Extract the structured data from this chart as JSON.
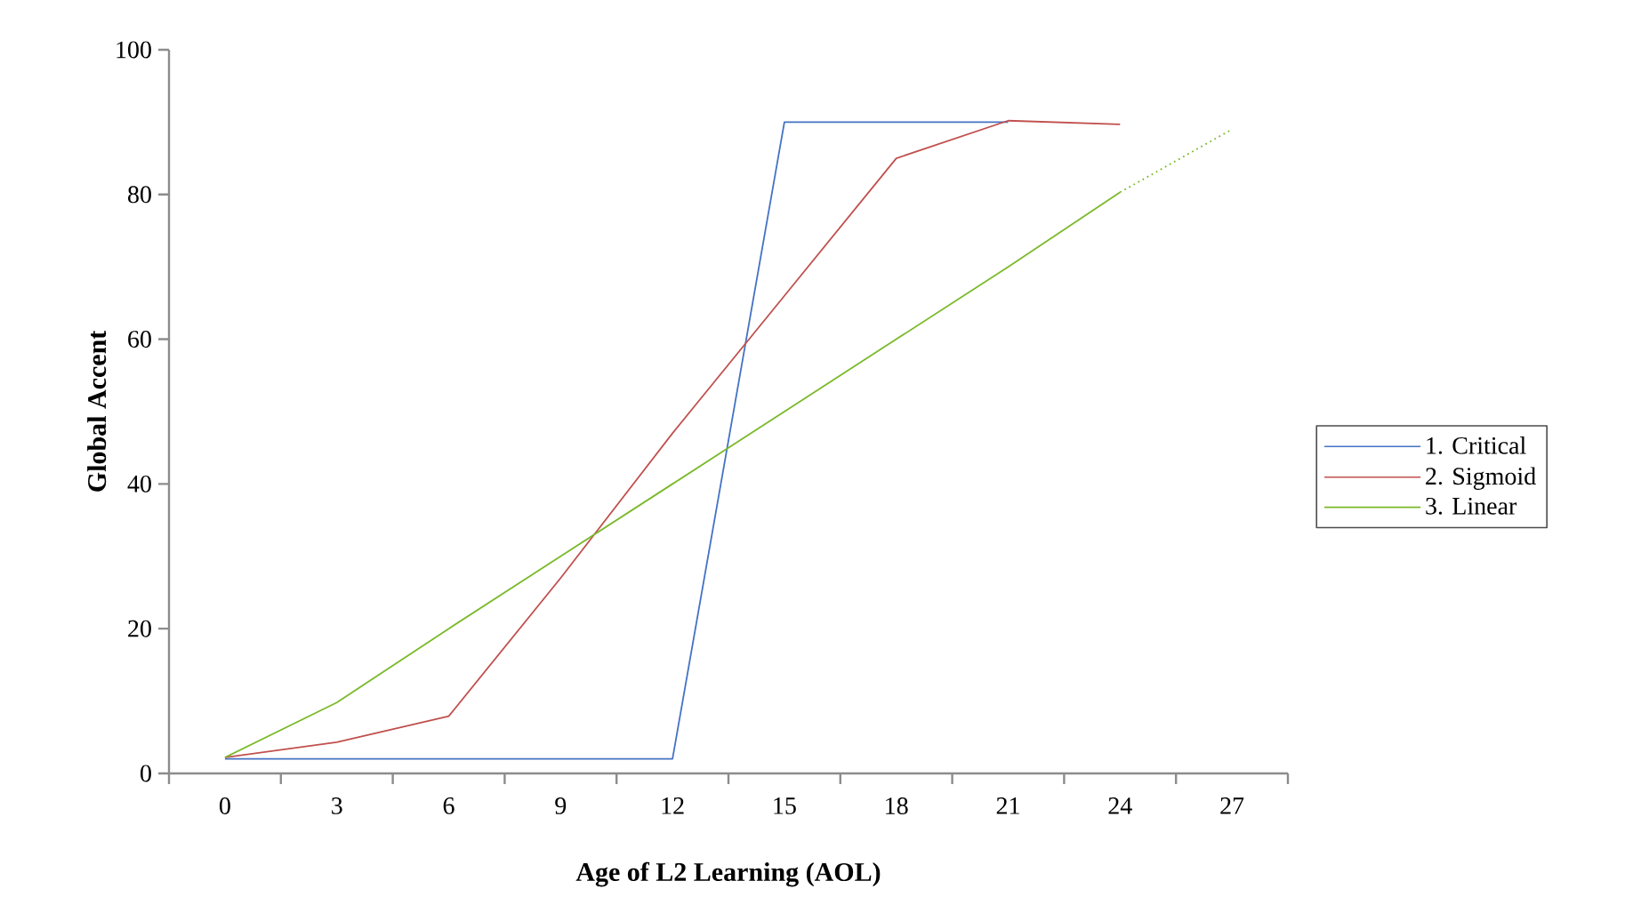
{
  "chart_data": {
    "type": "line",
    "xlabel": "Age of L2 Learning (AOL)",
    "ylabel": "Global Accent",
    "categories": [
      "0",
      "3",
      "6",
      "9",
      "12",
      "15",
      "18",
      "21",
      "24",
      "27"
    ],
    "ylim": [
      0,
      100
    ],
    "yticks": [
      0,
      20,
      40,
      60,
      80,
      100
    ],
    "grid": false,
    "legend": "right",
    "marker": "none",
    "series": [
      {
        "name": "1. Critical",
        "color": "#4472c4",
        "line_style": "solid",
        "values": [
          2,
          2,
          2,
          2,
          2,
          90,
          90,
          90,
          null,
          null
        ]
      },
      {
        "name": "2. Sigmoid",
        "color": "#c0504d",
        "line_style": "solid",
        "values": [
          2.2,
          4.3,
          7.9,
          27,
          47,
          66,
          85,
          90.2,
          89.7,
          null
        ]
      },
      {
        "name": "3. Linear",
        "color": "#7ab929",
        "line_style": "solid",
        "values": [
          2.2,
          9.8,
          20,
          30,
          40,
          50,
          60,
          70,
          80.3,
          null
        ]
      },
      {
        "color": "#7ab929",
        "line_style": "dotted",
        "values": [
          null,
          null,
          null,
          null,
          null,
          null,
          null,
          null,
          80.3,
          89
        ]
      }
    ]
  }
}
